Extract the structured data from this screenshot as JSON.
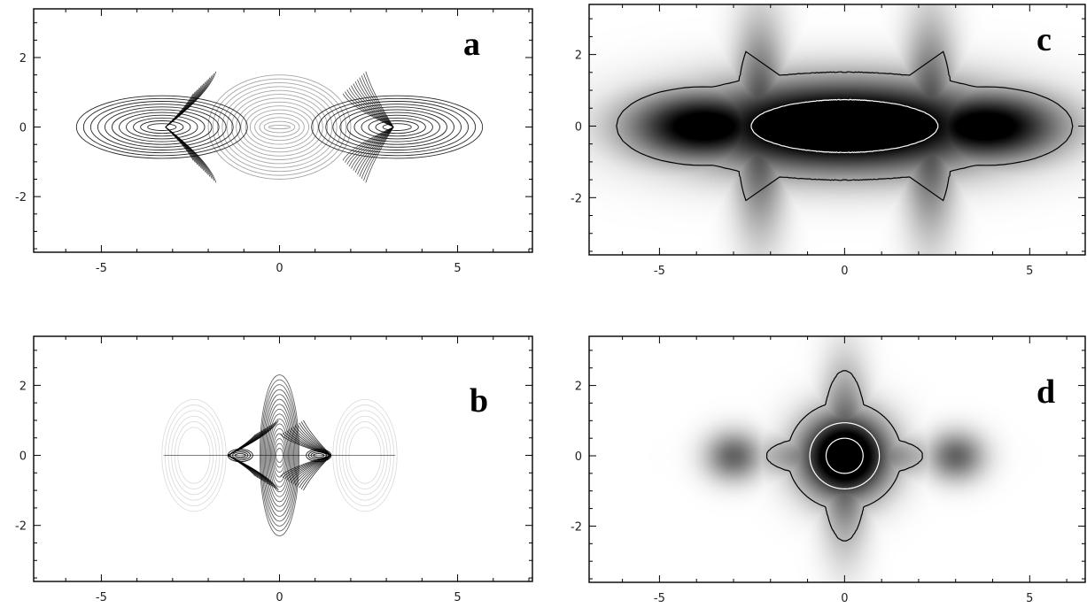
{
  "chart_data": [
    {
      "type": "heatmap",
      "panel_label": "a",
      "title": "",
      "xlabel": "",
      "ylabel": "",
      "xlim": [
        -6.9,
        7.1
      ],
      "ylim": [
        -3.6,
        3.4
      ],
      "xticks": [
        -5,
        0,
        5
      ],
      "yticks": [
        -2,
        0,
        2
      ],
      "xtick_labels": [
        "-5",
        "0",
        "5"
      ],
      "ytick_labels": [
        "-2",
        "0",
        "2"
      ],
      "grid": false,
      "rendering": "line-drawing",
      "families": [
        {
          "kind": "ellipse",
          "cx": -3.3,
          "cy": 0,
          "rx_range": [
            0.4,
            2.4
          ],
          "ry_range": [
            0.1,
            0.9
          ],
          "count": 11,
          "opacity": 0.85
        },
        {
          "kind": "ellipse",
          "cx": 3.3,
          "cy": 0,
          "rx_range": [
            0.4,
            2.4
          ],
          "ry_range": [
            0.1,
            0.9
          ],
          "count": 11,
          "opacity": 0.85
        },
        {
          "kind": "ellipse",
          "cx": 0,
          "cy": 0,
          "rx_range": [
            0.3,
            2.0
          ],
          "ry_range": [
            0.05,
            1.5
          ],
          "count": 14,
          "opacity": 0.35
        },
        {
          "kind": "fan",
          "cx": -2.3,
          "cy": 0,
          "spread": 1.6,
          "count": 12,
          "opacity": 0.7
        },
        {
          "kind": "fan",
          "cx": 2.3,
          "cy": 0,
          "spread": 1.6,
          "count": 12,
          "opacity": 0.7
        }
      ]
    },
    {
      "type": "heatmap",
      "panel_label": "b",
      "title": "",
      "xlabel": "",
      "ylabel": "",
      "xlim": [
        -6.9,
        7.1
      ],
      "ylim": [
        -3.6,
        3.4
      ],
      "xticks": [
        -5,
        0,
        5
      ],
      "yticks": [
        -2,
        0,
        2
      ],
      "xtick_labels": [
        "-5",
        "0",
        "5"
      ],
      "ytick_labels": [
        "-2",
        "0",
        "2"
      ],
      "grid": false,
      "rendering": "line-drawing",
      "families": [
        {
          "kind": "ellipse",
          "cx": 0,
          "cy": 0,
          "rx_range": [
            0.1,
            0.55
          ],
          "ry_range": [
            0.2,
            2.3
          ],
          "count": 16,
          "opacity": 0.6
        },
        {
          "kind": "ellipse",
          "cx": -1.1,
          "cy": 0,
          "rx_range": [
            0.15,
            0.35
          ],
          "ry_range": [
            0.05,
            0.18
          ],
          "count": 4,
          "opacity": 0.9
        },
        {
          "kind": "ellipse",
          "cx": 1.1,
          "cy": 0,
          "rx_range": [
            0.15,
            0.35
          ],
          "ry_range": [
            0.05,
            0.18
          ],
          "count": 4,
          "opacity": 0.9
        },
        {
          "kind": "fan",
          "cx": -0.55,
          "cy": 0,
          "spread": 1.0,
          "count": 12,
          "opacity": 0.8
        },
        {
          "kind": "fan",
          "cx": 0.55,
          "cy": 0,
          "spread": 1.0,
          "count": 12,
          "opacity": 0.8
        },
        {
          "kind": "arc",
          "cx": -2.4,
          "cy": 0,
          "rx": 0.9,
          "ry": 1.6,
          "count": 6,
          "opacity": 0.15
        },
        {
          "kind": "arc",
          "cx": 2.4,
          "cy": 0,
          "rx": 0.9,
          "ry": 1.6,
          "count": 6,
          "opacity": 0.15
        },
        {
          "kind": "line",
          "x": [
            -3.25,
            3.25
          ],
          "y": [
            0,
            0
          ],
          "opacity": 0.5
        }
      ]
    },
    {
      "type": "heatmap",
      "panel_label": "c",
      "title": "",
      "xlabel": "",
      "ylabel": "",
      "xlim": [
        -6.9,
        6.5
      ],
      "ylim": [
        -3.6,
        3.4
      ],
      "xticks": [
        -5,
        0,
        5
      ],
      "yticks": [
        -2,
        0,
        2
      ],
      "xtick_labels": [
        "-5",
        "0",
        "5"
      ],
      "ytick_labels": [
        "-2",
        "0",
        "2"
      ],
      "grid": false,
      "rendering": "density",
      "blobs": [
        {
          "cx": 0,
          "cy": 0,
          "sx": 3.1,
          "sy": 0.9,
          "weight": 1.0
        },
        {
          "cx": -3.8,
          "cy": 0,
          "sx": 1.5,
          "sy": 0.7,
          "weight": 0.85
        },
        {
          "cx": 3.8,
          "cy": 0,
          "sx": 1.5,
          "sy": 0.7,
          "weight": 0.85
        },
        {
          "cx": -2.3,
          "cy": 0,
          "sx": 0.5,
          "sy": 2.0,
          "weight": 0.55
        },
        {
          "cx": 2.3,
          "cy": 0,
          "sx": 0.5,
          "sy": 2.0,
          "weight": 0.55
        }
      ],
      "contours": [
        {
          "level": 0.25,
          "color": "#000000"
        },
        {
          "level": 0.72,
          "color": "#ffffff"
        }
      ]
    },
    {
      "type": "heatmap",
      "panel_label": "d",
      "title": "",
      "xlabel": "",
      "ylabel": "",
      "xlim": [
        -6.9,
        6.5
      ],
      "ylim": [
        -3.6,
        3.4
      ],
      "xticks": [
        -5,
        0,
        5
      ],
      "yticks": [
        -2,
        0,
        2
      ],
      "xtick_labels": [
        "-5",
        "0",
        "5"
      ],
      "ytick_labels": [
        "-2",
        "0",
        "2"
      ],
      "grid": false,
      "rendering": "density",
      "blobs": [
        {
          "cx": 0,
          "cy": 0,
          "sx": 0.85,
          "sy": 0.85,
          "weight": 1.0
        },
        {
          "cx": 0,
          "cy": 0,
          "sx": 0.45,
          "sy": 1.7,
          "weight": 0.55
        },
        {
          "cx": 0,
          "cy": 0,
          "sx": 1.55,
          "sy": 0.45,
          "weight": 0.5
        },
        {
          "cx": -3.0,
          "cy": 0,
          "sx": 0.55,
          "sy": 0.5,
          "weight": 0.45
        },
        {
          "cx": 3.0,
          "cy": 0,
          "sx": 0.55,
          "sy": 0.5,
          "weight": 0.45
        }
      ],
      "contours": [
        {
          "level": 0.2,
          "color": "#000000"
        },
        {
          "level": 0.55,
          "color": "#ffffff"
        },
        {
          "level": 0.85,
          "color": "#ffffff"
        }
      ]
    }
  ]
}
